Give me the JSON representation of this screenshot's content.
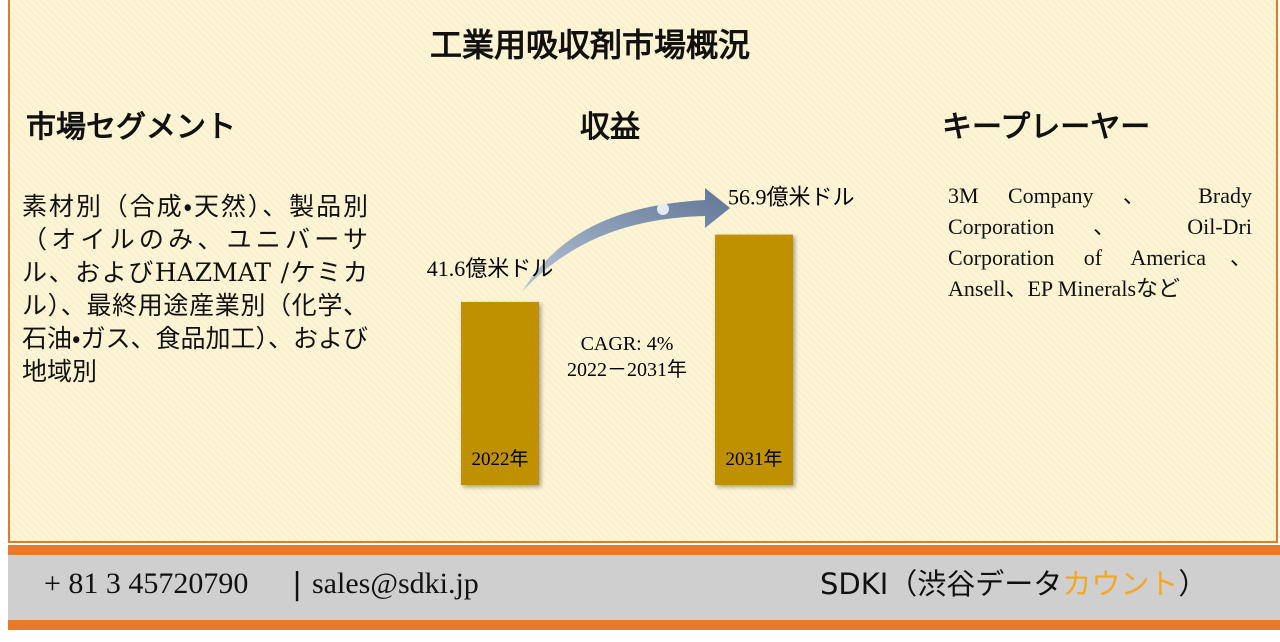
{
  "title": "工業用吸収剤市場概況",
  "segments": {
    "heading": "市場セグメント",
    "text": "素材別（合成・天然）、製品別（オイルのみ、ユニバーサル、およびHAZMAT /ケミカル）、最終用途産業別（化学、石油・ガス、食品加工）、および地域別"
  },
  "revenue": {
    "heading": "収益"
  },
  "players": {
    "heading": "キープレーヤー",
    "text": "3M Company 、 Brady Corporation 、 Oil-Dri Corporation of America、Ansell、EP Mineralsなど"
  },
  "chart_data": {
    "type": "bar",
    "categories": [
      "2022年",
      "2031年"
    ],
    "values": [
      41.6,
      56.9
    ],
    "value_labels": [
      "41.6億米ドル",
      "56.9億米ドル"
    ],
    "color": "#bf9000",
    "annotation": "CAGR: 4%",
    "annotation_period": "2022－2031年"
  },
  "footer": {
    "phone": "+ 81 3 45720790",
    "separator": "|",
    "email": "sales@sdki.jp",
    "brand": "SDKI（渋谷データ",
    "brand_highlight": "カウント",
    "brand_end": "）"
  }
}
